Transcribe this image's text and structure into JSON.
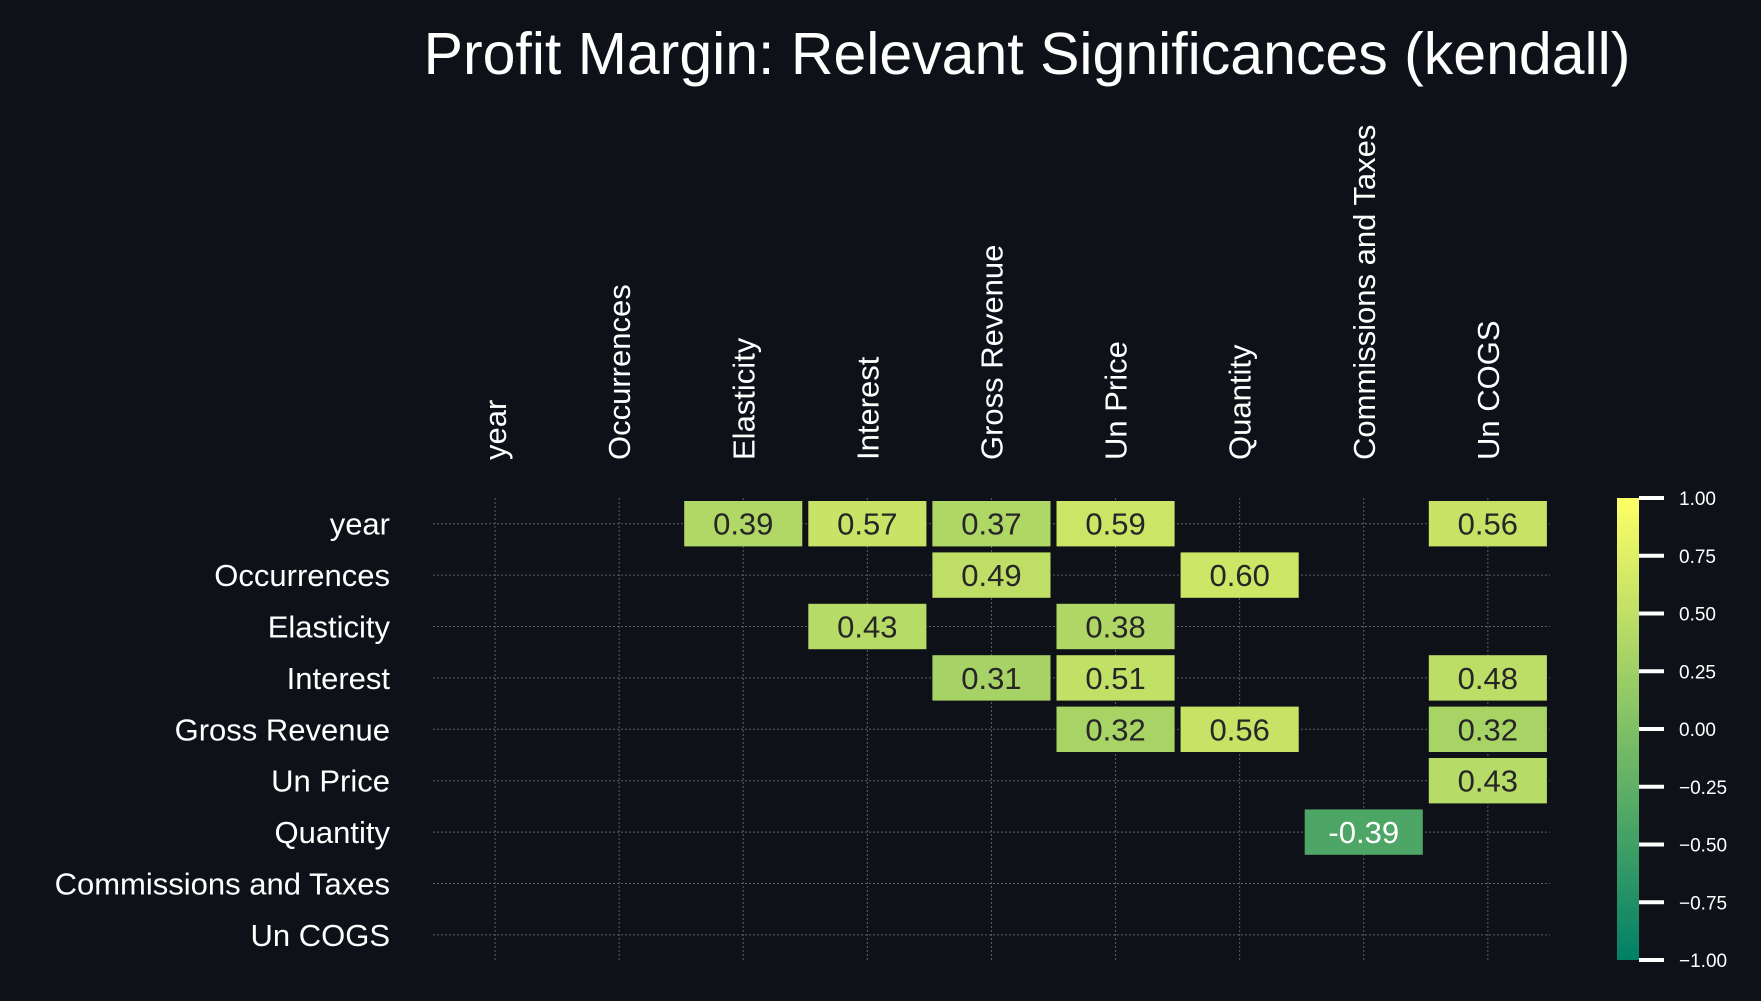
{
  "chart_data": {
    "type": "heatmap",
    "title": "Profit Margin: Relevant Significances (kendall)",
    "rows": [
      "year",
      "Occurrences",
      "Elasticity",
      "Interest",
      "Gross Revenue",
      "Un Price",
      "Quantity",
      "Commissions and Taxes",
      "Un COGS"
    ],
    "columns": [
      "year",
      "Occurrences",
      "Elasticity",
      "Interest",
      "Gross Revenue",
      "Un Price",
      "Quantity",
      "Commissions and Taxes",
      "Un COGS"
    ],
    "cells": [
      {
        "row": "year",
        "col": "Elasticity",
        "value": 0.39,
        "label": "0.39"
      },
      {
        "row": "year",
        "col": "Interest",
        "value": 0.57,
        "label": "0.57"
      },
      {
        "row": "year",
        "col": "Gross Revenue",
        "value": 0.37,
        "label": "0.37"
      },
      {
        "row": "year",
        "col": "Un Price",
        "value": 0.59,
        "label": "0.59"
      },
      {
        "row": "year",
        "col": "Un COGS",
        "value": 0.56,
        "label": "0.56"
      },
      {
        "row": "Occurrences",
        "col": "Gross Revenue",
        "value": 0.49,
        "label": "0.49"
      },
      {
        "row": "Occurrences",
        "col": "Quantity",
        "value": 0.6,
        "label": "0.60"
      },
      {
        "row": "Elasticity",
        "col": "Interest",
        "value": 0.43,
        "label": "0.43"
      },
      {
        "row": "Elasticity",
        "col": "Un Price",
        "value": 0.38,
        "label": "0.38"
      },
      {
        "row": "Interest",
        "col": "Gross Revenue",
        "value": 0.31,
        "label": "0.31"
      },
      {
        "row": "Interest",
        "col": "Un Price",
        "value": 0.51,
        "label": "0.51"
      },
      {
        "row": "Interest",
        "col": "Un COGS",
        "value": 0.48,
        "label": "0.48"
      },
      {
        "row": "Gross Revenue",
        "col": "Un Price",
        "value": 0.32,
        "label": "0.32"
      },
      {
        "row": "Gross Revenue",
        "col": "Quantity",
        "value": 0.56,
        "label": "0.56"
      },
      {
        "row": "Gross Revenue",
        "col": "Un COGS",
        "value": 0.32,
        "label": "0.32"
      },
      {
        "row": "Un Price",
        "col": "Un COGS",
        "value": 0.43,
        "label": "0.43"
      },
      {
        "row": "Quantity",
        "col": "Commissions and Taxes",
        "value": -0.39,
        "label": "-0.39"
      }
    ],
    "colorbar": {
      "range": [
        -1.0,
        1.0
      ],
      "ticks": [
        1.0,
        0.75,
        0.5,
        0.25,
        0.0,
        -0.25,
        -0.5,
        -0.75,
        -1.0
      ],
      "tick_labels": [
        "1.00",
        "0.75",
        "0.50",
        "0.25",
        "0.00",
        "−0.25",
        "−0.50",
        "−0.75",
        "−1.00"
      ],
      "colormap": "summer",
      "color_low": "#008066",
      "color_high": "#ffff66"
    },
    "grid": true,
    "legend_placement": "right"
  },
  "colors": {
    "background": "#0e1117",
    "text": "#ffffff",
    "gridline": "#5a5e66"
  }
}
